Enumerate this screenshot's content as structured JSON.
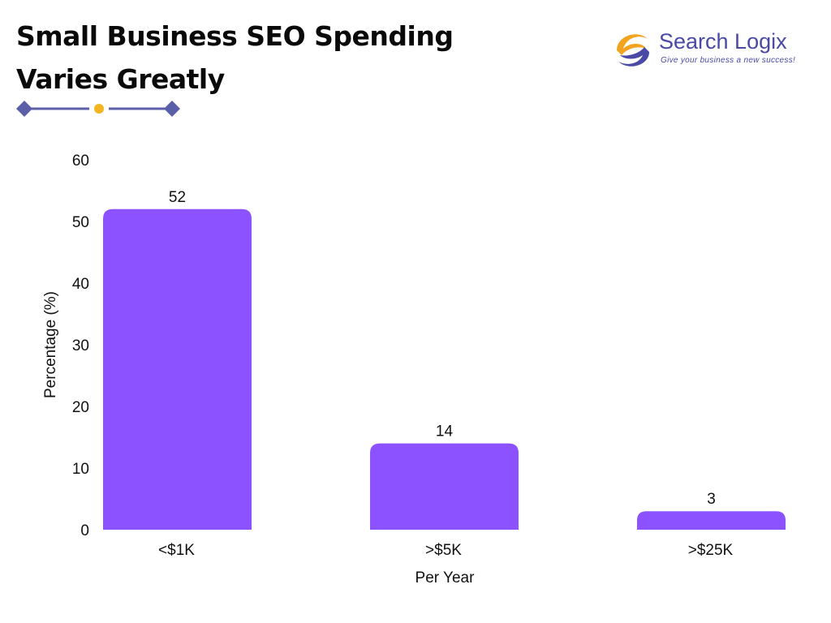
{
  "header": {
    "title_line1": "Small Business SEO Spending",
    "title_line2": "Varies Greatly"
  },
  "logo": {
    "name": "Search Logix",
    "tagline": "Give your business a new success!"
  },
  "colors": {
    "bar": "#8c52ff",
    "divider": "#5b5fa8",
    "divider_dot": "#f2b51f",
    "logo_orange": "#f2a31f",
    "logo_blue": "#4a4aa6",
    "text": "#111111"
  },
  "chart_data": {
    "type": "bar",
    "categories": [
      "<$1K",
      ">$5K",
      ">$25K"
    ],
    "values": [
      52,
      14,
      3
    ],
    "data_labels": [
      "52",
      "14",
      "3"
    ],
    "title": "",
    "xlabel": "Per Year",
    "ylabel": "Percentage (%)",
    "ylim": [
      0,
      60
    ],
    "yticks": [
      "0",
      "10",
      "20",
      "30",
      "40",
      "50",
      "60"
    ],
    "grid": false,
    "legend": "none"
  }
}
